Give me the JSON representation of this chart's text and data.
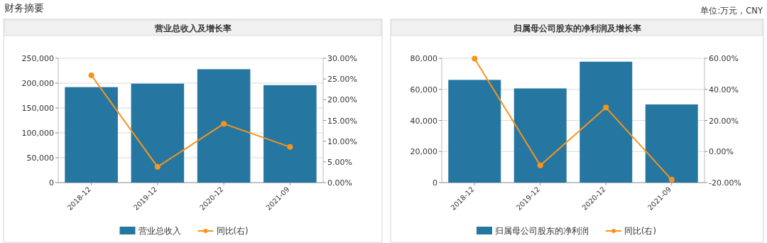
{
  "chart_data": [
    {
      "type": "bar",
      "title": "营业总收入及增长率",
      "annotations": [
        "财务摘要",
        "单位:万元，CNY"
      ],
      "categories": [
        "2018-12",
        "2019-12",
        "2020-12",
        "2021-09"
      ],
      "series": [
        {
          "name": "营业总收入",
          "color": "#2577a1",
          "values": [
            192000,
            199000,
            228000,
            196000
          ]
        },
        {
          "name": "同比(右)",
          "type": "line",
          "axis": "y2",
          "color": "#f7941d",
          "values": [
            25.9,
            3.8,
            14.2,
            8.6
          ]
        }
      ],
      "ylim": [
        0,
        250000
      ],
      "yticks": [
        {
          "value": 0,
          "label": "0"
        },
        {
          "value": 50000,
          "label": "50,000"
        },
        {
          "value": 100000,
          "label": "100,000"
        },
        {
          "value": 150000,
          "label": "150,000"
        },
        {
          "value": 200000,
          "label": "200,000"
        },
        {
          "value": 250000,
          "label": "250,000"
        }
      ],
      "y2lim": [
        0,
        30
      ],
      "y2ticks": [
        {
          "value": 0,
          "label": "0.00%"
        },
        {
          "value": 5,
          "label": "5.00%"
        },
        {
          "value": 10,
          "label": "10.00%"
        },
        {
          "value": 15,
          "label": "15.00%"
        },
        {
          "value": 20,
          "label": "20.00%"
        },
        {
          "value": 25,
          "label": "25.00%"
        },
        {
          "value": 30,
          "label": "30.00%"
        }
      ],
      "grid": "y",
      "legend": "bottom",
      "marker": "circle"
    },
    {
      "type": "bar",
      "title": "归属母公司股东的净利润及增长率",
      "categories": [
        "2018-12",
        "2019-12",
        "2020-12",
        "2021-09"
      ],
      "series": [
        {
          "name": "归属母公司股东的净利润",
          "color": "#2577a1",
          "values": [
            66100,
            60600,
            77800,
            50300
          ]
        },
        {
          "name": "同比(右)",
          "type": "line",
          "axis": "y2",
          "color": "#f7941d",
          "values": [
            59.8,
            -8.9,
            28.3,
            -18.1
          ]
        }
      ],
      "ylim": [
        0,
        80000
      ],
      "yticks": [
        {
          "value": 0,
          "label": "0"
        },
        {
          "value": 20000,
          "label": "20,000"
        },
        {
          "value": 40000,
          "label": "40,000"
        },
        {
          "value": 60000,
          "label": "60,000"
        },
        {
          "value": 80000,
          "label": "80,000"
        }
      ],
      "y2lim": [
        -20,
        60
      ],
      "y2ticks": [
        {
          "value": -20,
          "label": "-20.00%"
        },
        {
          "value": 0,
          "label": "0.00%"
        },
        {
          "value": 20,
          "label": "20.00%"
        },
        {
          "value": 40,
          "label": "40.00%"
        },
        {
          "value": 60,
          "label": "60.00%"
        }
      ],
      "grid": "y",
      "legend": "bottom",
      "marker": "circle"
    }
  ]
}
